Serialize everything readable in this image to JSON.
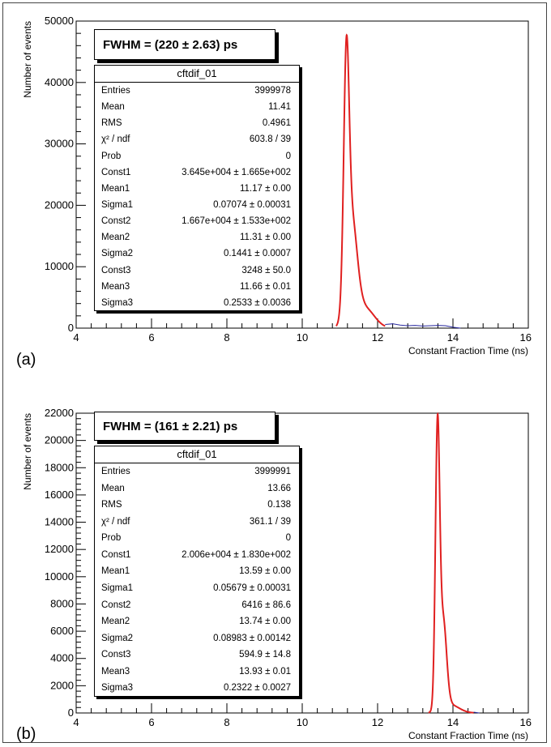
{
  "colors": {
    "fit": "#e02020",
    "histogram": "#2a2aa0",
    "axis": "#000000"
  },
  "panels": [
    {
      "panel_label": "(a)",
      "fwhm": "FWHM = (220 ± 2.63) ps",
      "stats": {
        "title": "cftdif_01",
        "rows": [
          {
            "name": "Entries",
            "value": "3999978"
          },
          {
            "name": "Mean",
            "value": "11.41"
          },
          {
            "name": "RMS",
            "value": "0.4961"
          },
          {
            "name": "χ² / ndf",
            "value": "603.8 / 39"
          },
          {
            "name": "Prob",
            "value": "0"
          },
          {
            "name": "Const1",
            "value": "3.645e+004 ± 1.665e+002"
          },
          {
            "name": "Mean1",
            "value": "11.17 ± 0.00"
          },
          {
            "name": "Sigma1",
            "value": "0.07074 ± 0.00031"
          },
          {
            "name": "Const2",
            "value": "1.667e+004 ± 1.533e+002"
          },
          {
            "name": "Mean2",
            "value": "11.31 ± 0.00"
          },
          {
            "name": "Sigma2",
            "value": "0.1441 ± 0.0007"
          },
          {
            "name": "Const3",
            "value": "3248 ± 50.0"
          },
          {
            "name": "Mean3",
            "value": "11.66 ± 0.01"
          },
          {
            "name": "Sigma3",
            "value": "0.2533 ± 0.0036"
          }
        ]
      }
    },
    {
      "panel_label": "(b)",
      "fwhm": "FWHM = (161 ± 2.21) ps",
      "stats": {
        "title": "cftdif_01",
        "rows": [
          {
            "name": "Entries",
            "value": "3999991"
          },
          {
            "name": "Mean",
            "value": "13.66"
          },
          {
            "name": "RMS",
            "value": "0.138"
          },
          {
            "name": "χ² / ndf",
            "value": "361.1 / 39"
          },
          {
            "name": "Prob",
            "value": "0"
          },
          {
            "name": "Const1",
            "value": "2.006e+004 ± 1.830e+002"
          },
          {
            "name": "Mean1",
            "value": "13.59 ± 0.00"
          },
          {
            "name": "Sigma1",
            "value": "0.05679 ± 0.00031"
          },
          {
            "name": "Const2",
            "value": "6416 ± 86.6"
          },
          {
            "name": "Mean2",
            "value": "13.74 ± 0.00"
          },
          {
            "name": "Sigma2",
            "value": "0.08983 ± 0.00142"
          },
          {
            "name": "Const3",
            "value": "594.9 ± 14.8"
          },
          {
            "name": "Mean3",
            "value": "13.93 ± 0.01"
          },
          {
            "name": "Sigma3",
            "value": "0.2322 ± 0.0027"
          }
        ]
      }
    }
  ],
  "chart_data": [
    {
      "type": "line",
      "xlabel": "Constant Fraction Time (ns)",
      "ylabel": "Number of events",
      "xlim": [
        4,
        16
      ],
      "ylim": [
        0,
        50000
      ],
      "x_ticks": [
        4,
        6,
        8,
        10,
        12,
        14,
        16
      ],
      "x_tick_labels": [
        "4",
        "6",
        "8",
        "10",
        "12",
        "14",
        "16"
      ],
      "y_ticks": [
        0,
        10000,
        20000,
        30000,
        40000,
        50000
      ],
      "y_tick_labels": [
        "0",
        "10000",
        "20000",
        "30000",
        "40000",
        "50000"
      ],
      "grid": false,
      "fit": {
        "components": [
          {
            "const": 36450,
            "mean": 11.17,
            "sigma": 0.07074
          },
          {
            "const": 16670,
            "mean": 11.31,
            "sigma": 0.1441
          },
          {
            "const": 3248,
            "mean": 11.66,
            "sigma": 0.2533
          }
        ],
        "range": [
          10.9,
          12.2
        ]
      },
      "histogram_tail": {
        "x": [
          12.2,
          12.4,
          12.6,
          12.8,
          13.0,
          13.2,
          13.4,
          13.6,
          13.8,
          14.0,
          14.2
        ],
        "y": [
          600,
          700,
          500,
          400,
          450,
          350,
          400,
          450,
          400,
          150,
          0
        ]
      }
    },
    {
      "type": "line",
      "xlabel": "Constant Fraction Time (ns)",
      "ylabel": "Number of events",
      "xlim": [
        4,
        16
      ],
      "ylim": [
        0,
        22000
      ],
      "x_ticks": [
        4,
        6,
        8,
        10,
        12,
        14,
        16
      ],
      "x_tick_labels": [
        "4",
        "6",
        "8",
        "10",
        "12",
        "14",
        "16"
      ],
      "y_ticks": [
        0,
        2000,
        4000,
        6000,
        8000,
        10000,
        12000,
        14000,
        16000,
        18000,
        20000,
        22000
      ],
      "y_tick_labels": [
        "0",
        "2000",
        "4000",
        "6000",
        "8000",
        "10000",
        "12000",
        "14000",
        "16000",
        "18000",
        "20000",
        "22000"
      ],
      "grid": false,
      "fit": {
        "components": [
          {
            "const": 20060,
            "mean": 13.59,
            "sigma": 0.05679
          },
          {
            "const": 6416,
            "mean": 13.74,
            "sigma": 0.08983
          },
          {
            "const": 594.9,
            "mean": 13.93,
            "sigma": 0.2322
          }
        ],
        "range": [
          13.35,
          14.55
        ]
      },
      "histogram_tail": {
        "x": [
          14.55,
          14.7
        ],
        "y": [
          60,
          0
        ]
      }
    }
  ]
}
